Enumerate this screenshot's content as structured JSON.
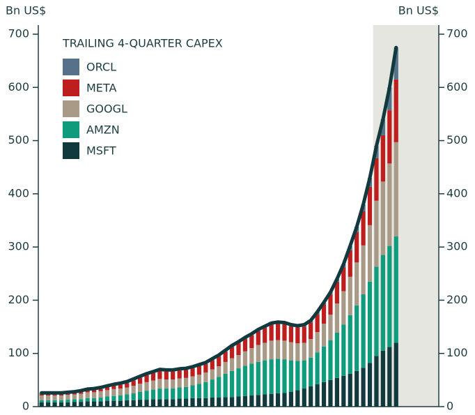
{
  "chart_data": {
    "type": "stacked_bar",
    "title": "TRAILING 4-QUARTER CAPEX",
    "y_label": "Bn US$",
    "y2_label": "Bn US$",
    "categories": [
      null,
      null,
      null,
      null,
      null,
      null,
      null,
      null,
      null,
      null,
      null,
      null,
      null,
      null,
      null,
      null,
      null,
      null,
      null,
      null,
      null,
      null,
      null,
      null,
      null,
      null,
      null,
      null,
      null,
      null,
      null,
      null,
      null,
      null,
      null,
      null,
      null,
      null,
      null,
      null,
      null,
      null,
      null,
      null,
      null,
      null,
      null,
      null,
      null,
      null,
      null,
      null,
      null,
      null,
      null
    ],
    "xlim": [
      -0.5,
      60.5
    ],
    "shaded_xrange": [
      50.5,
      60.5
    ],
    "shade_color": "#e6e6e1",
    "total_line": true,
    "line_color": "#123a3e",
    "legend": "upper left",
    "ylim": [
      0,
      700
    ],
    "yticks": [
      0,
      100,
      200,
      300,
      400,
      500,
      600,
      700
    ],
    "y2lim": [
      0,
      700
    ],
    "y2ticks": [
      0,
      100,
      200,
      300,
      400,
      500,
      600,
      700
    ],
    "series": [
      {
        "name": "MSFT",
        "color": "#123a3e",
        "values": [
          8,
          8,
          8,
          8,
          8,
          9,
          9,
          10,
          10,
          10,
          11,
          11,
          11,
          12,
          12,
          13,
          13,
          14,
          14,
          14,
          14,
          15,
          15,
          16,
          16,
          16,
          17,
          17,
          18,
          18,
          19,
          20,
          21,
          22,
          23,
          24,
          25,
          26,
          28,
          31,
          34,
          38,
          42,
          46,
          50,
          54,
          58,
          62,
          67,
          73,
          82,
          95,
          105,
          112,
          120
        ]
      },
      {
        "name": "AMZN",
        "color": "#0f9c7c",
        "values": [
          4,
          4,
          4,
          4,
          5,
          5,
          5,
          6,
          6,
          7,
          8,
          9,
          10,
          11,
          13,
          15,
          17,
          18,
          20,
          20,
          20,
          21,
          22,
          24,
          27,
          30,
          34,
          39,
          44,
          49,
          53,
          57,
          60,
          62,
          64,
          65,
          65,
          63,
          59,
          55,
          53,
          54,
          60,
          67,
          75,
          85,
          96,
          110,
          123,
          138,
          153,
          168,
          180,
          190,
          200
        ]
      },
      {
        "name": "GOOGL",
        "color": "#a99a87",
        "values": [
          9,
          9,
          9,
          9,
          9,
          9,
          10,
          11,
          11,
          12,
          12,
          13,
          13,
          13,
          14,
          15,
          16,
          17,
          18,
          17,
          17,
          17,
          17,
          17,
          17,
          18,
          19,
          20,
          22,
          24,
          25,
          27,
          29,
          32,
          33,
          35,
          35,
          35,
          34,
          33,
          33,
          35,
          38,
          43,
          48,
          55,
          63,
          72,
          81,
          92,
          106,
          124,
          138,
          155,
          177
        ]
      },
      {
        "name": "META",
        "color": "#bf1e1e",
        "values": [
          2,
          2,
          2,
          2,
          2,
          2,
          3,
          3,
          4,
          4,
          5,
          6,
          7,
          8,
          10,
          11,
          13,
          14,
          15,
          15,
          15,
          15,
          15,
          15,
          16,
          16,
          17,
          18,
          19,
          21,
          22,
          23,
          24,
          26,
          28,
          30,
          31,
          31,
          30,
          30,
          30,
          31,
          34,
          36,
          38,
          41,
          45,
          50,
          57,
          64,
          72,
          80,
          87,
          100,
          118
        ]
      },
      {
        "name": "ORCL",
        "color": "#55728a",
        "values": [
          3,
          3,
          3,
          3,
          3,
          3,
          3,
          3,
          3,
          3,
          3,
          3,
          3,
          3,
          3,
          3,
          3,
          3,
          3,
          3,
          3,
          3,
          3,
          3,
          3,
          3,
          3,
          3,
          3,
          3,
          3,
          3,
          3,
          3,
          3,
          3,
          3,
          3,
          3,
          3,
          4,
          4,
          4,
          4,
          4,
          5,
          6,
          8,
          10,
          13,
          17,
          23,
          30,
          43,
          60
        ]
      }
    ]
  }
}
